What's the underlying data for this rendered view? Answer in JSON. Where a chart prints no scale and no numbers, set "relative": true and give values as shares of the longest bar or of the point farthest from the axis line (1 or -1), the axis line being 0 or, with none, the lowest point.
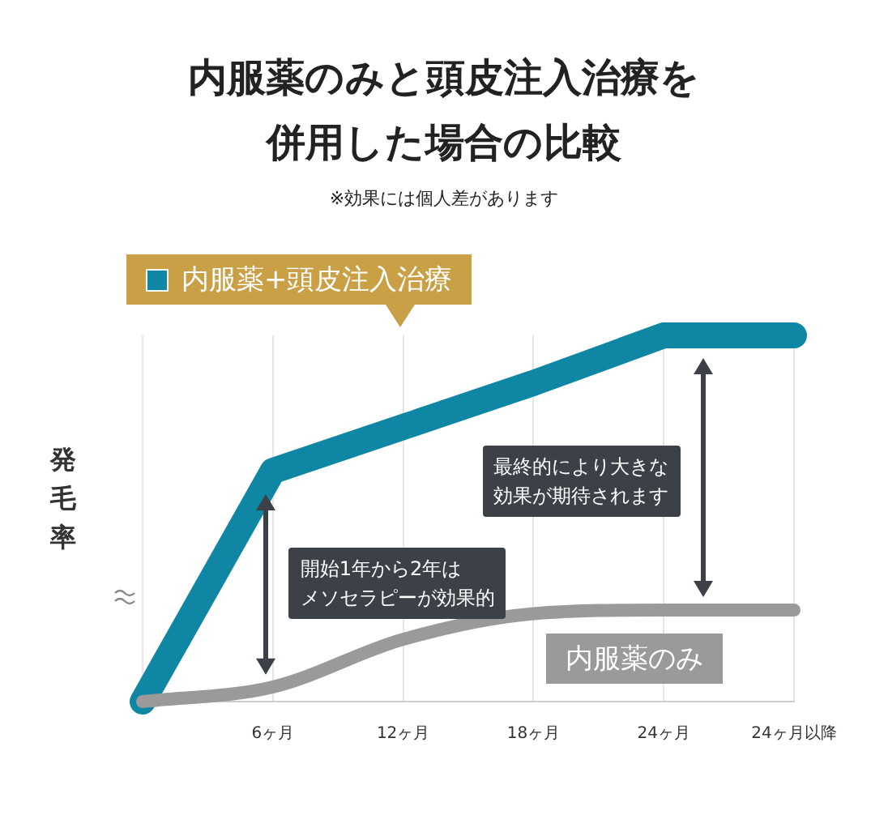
{
  "chart_data": {
    "type": "line",
    "title": "内服薬のみと頭皮注入治療を併用した場合の比較",
    "subtitle": "※効果には個人差があります",
    "ylabel": "発毛率",
    "relative": true,
    "grid": "x",
    "legend": "top left",
    "marker": "none",
    "line_style": "solid",
    "categories": [
      null,
      "6ヶ月",
      "12ヶ月",
      "18ヶ月",
      "24ヶ月",
      "24ヶ月以降"
    ],
    "series": [
      {
        "name": "内服薬+頭皮注入治療",
        "color": "#0f86a3",
        "values": [
          0,
          0.63,
          0.75,
          0.87,
          1,
          1
        ]
      },
      {
        "name": "内服薬のみ",
        "color": "#9a9a9a",
        "values": [
          0,
          0.04,
          0.17,
          0.24,
          0.25,
          0.25
        ]
      }
    ],
    "annotations": [
      "開始1年から2年は",
      "メソセラピーが効果的",
      "最終的により大きな",
      "効果が期待されます"
    ]
  }
}
